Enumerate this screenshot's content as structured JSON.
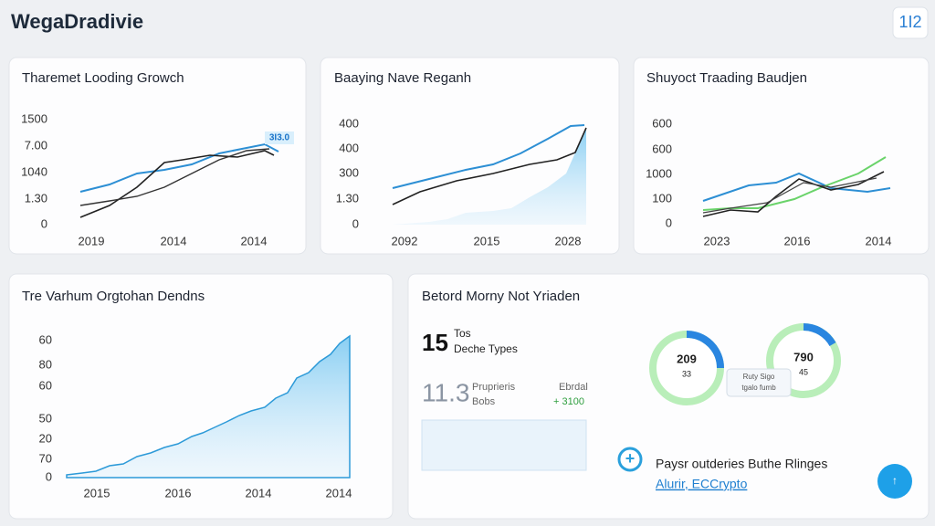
{
  "header": {
    "title": "WegaDradivie",
    "badge": "1I2"
  },
  "panels": [
    {
      "title": "Tharemet Looding Growch",
      "y_labels": [
        "1500",
        "7.00",
        "1040",
        "1.30",
        "0"
      ],
      "x_labels": [
        "2019",
        "2014",
        "2014"
      ],
      "tag": "3I3.0"
    },
    {
      "title": "Baaying Nave Reganh",
      "y_labels": [
        "400",
        "400",
        "300",
        "1.30",
        "0"
      ],
      "x_labels": [
        "2092",
        "2015",
        "2028"
      ]
    },
    {
      "title": "Shuyoct Traading Baudjen",
      "y_labels": [
        "600",
        "600",
        "1000",
        "100",
        "0"
      ],
      "x_labels": [
        "2023",
        "2016",
        "2014"
      ]
    },
    {
      "title": "Tre Varhum Orgtohan Dendns",
      "y_labels": [
        "60",
        "80",
        "60",
        "50",
        "20",
        "70",
        "0"
      ],
      "x_labels": [
        "2015",
        "2016",
        "2014",
        "2014"
      ]
    }
  ],
  "summary": {
    "title": "Betord Morny Not Yriaden",
    "stat1": {
      "value": "15",
      "line1": "Tos",
      "line2": "Deche Types"
    },
    "stat2": {
      "value": "11.3",
      "line1": "Pruprieris",
      "line2": "Bobs",
      "side1": "Ebrdal",
      "side2": "+ 3100"
    },
    "gauges": [
      {
        "value": "209",
        "sub": "33"
      },
      {
        "value": "790",
        "sub": "45"
      }
    ],
    "gauge_note": [
      "Ruty Sigo",
      "tgalo fumb"
    ],
    "footer": {
      "text": "Paysr outderies Buthe Rlinges",
      "link": "Alurir, ECCrypto"
    }
  }
}
